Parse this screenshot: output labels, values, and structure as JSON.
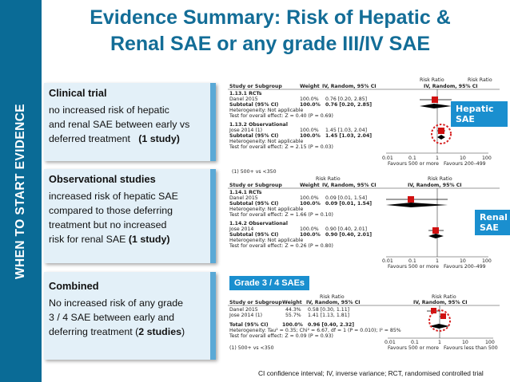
{
  "sidebar": {
    "label": "WHEN TO START EVIDENCE"
  },
  "title": {
    "line1": "Evidence Summary: Risk of Hepatic &",
    "line2": "Renal  SAE or any grade III/IV SAE"
  },
  "boxes": {
    "clinical": {
      "heading": "Clinical trial",
      "l1": "no increased risk of  hepatic",
      "l2": "and renal SAE between early vs",
      "l3": "deferred treatment",
      "l3b": "(1 study)"
    },
    "observational": {
      "heading": "Observational studies",
      "l1": "increased risk of hepatic SAE",
      "l2": "compared to those deferring",
      "l3": "treatment  but no increased",
      "l4": "risk for renal SAE ",
      "l4b": "(1 study)"
    },
    "combined": {
      "heading": "Combined",
      "l1": "No increased risk of any grade",
      "l2": "3 / 4 SAE between  early and",
      "l3": "deferring  treatment (",
      "l3b": "2 studies",
      "l3c": ")"
    }
  },
  "badges": {
    "hepatic": "Hepatic SAE",
    "renal": "Renal SAE",
    "grade": "Grade 3 / 4 SAEs"
  },
  "forest_common": {
    "col_study": "Study or Subgroup",
    "col_weight": "Weight",
    "col_ci": "IV, Random, 95% CI",
    "rr": "Risk Ratio",
    "favours_left": "Favours 500 or more",
    "favours_right": "Favours 200–499",
    "ticks": [
      "0.01",
      "0.1",
      "1",
      "10",
      "100"
    ]
  },
  "hepatic": {
    "g1": "1.13.1 RCTs",
    "r1": {
      "study": "Danel 2015",
      "weight": "100.0%",
      "ci": "0.76 [0.20, 2.85]"
    },
    "s1": {
      "study": "Subtotal (95% CI)",
      "weight": "100.0%",
      "ci": "0.76 [0.20, 2.85]"
    },
    "h1": "Heterogeneity: Not applicable",
    "t1": "Test for overall effect: Z = 0.40 (P = 0.69)",
    "g2": "1.13.2 Observational",
    "r2": {
      "study": "Jose 2014 (1)",
      "weight": "100.0%",
      "ci": "1.45 [1.03, 2.04]"
    },
    "s2": {
      "study": "Subtotal (95% CI)",
      "weight": "100.0%",
      "ci": "1.45 [1.03, 2.04]"
    },
    "h2": "Heterogeneity: Not applicable",
    "t2": "Test for overall effect: Z = 2.15 (P = 0.03)",
    "foot": "(1) 500+ vs <350"
  },
  "renal": {
    "g1": "1.14.1 RCTs",
    "r1": {
      "study": "Danel 2015",
      "weight": "100.0%",
      "ci": "0.09 [0.01, 1.54]"
    },
    "s1": {
      "study": "Subtotal (95% CI)",
      "weight": "100.0%",
      "ci": "0.09 [0.01, 1.54]"
    },
    "h1": "Heterogeneity: Not applicable",
    "t1": "Test for overall effect: Z = 1.66 (P = 0.10)",
    "g2": "1.14.2 Observational",
    "r2": {
      "study": "Jose 2014",
      "weight": "100.0%",
      "ci": "0.90 [0.40, 2.01]"
    },
    "s2": {
      "study": "Subtotal (95% CI)",
      "weight": "100.0%",
      "ci": "0.90 [0.40, 2.01]"
    },
    "h2": "Heterogeneity: Not applicable",
    "t2": "Test for overall effect: Z = 0.26 (P = 0.80)"
  },
  "grade": {
    "r1": {
      "study": "Danel 2015",
      "weight": "44.3%",
      "ci": "0.58 [0.30, 1.11]"
    },
    "r2": {
      "study": "Jose 2014 (1)",
      "weight": "55.7%",
      "ci": "1.41 [1.13, 1.81]"
    },
    "total": {
      "study": "Total (95% CI)",
      "weight": "100.0%",
      "ci": "0.96 [0.40, 2.32]"
    },
    "het": "Heterogeneity: Tau² = 0.35; Chi² = 6.67, df = 1 (P = 0.010); I² = 85%",
    "test": "Test for overall effect: Z = 0.09 (P = 0.93)",
    "fav_right": "Favours less than 500",
    "foot": "(1) 500+ vs <350"
  },
  "footer": "CI confidence interval; IV, inverse variance; RCT, randomised controlled trial",
  "colors": {
    "sidebar": "#0a6b96",
    "title": "#136d97",
    "box_bg": "#e3f0f8",
    "badge": "#1a8fcf",
    "highlight_circle": "#d62020"
  }
}
